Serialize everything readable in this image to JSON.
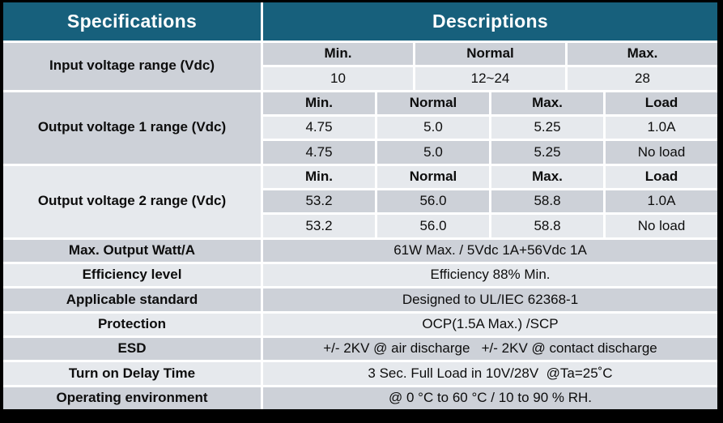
{
  "table": {
    "header": {
      "specifications": "Specifications",
      "descriptions": "Descriptions"
    },
    "input_voltage": {
      "label": "Input voltage range (Vdc)",
      "columns": [
        "Min.",
        "Normal",
        "Max."
      ],
      "values": [
        "10",
        "12~24",
        "28"
      ]
    },
    "output_voltage_1": {
      "label": "Output voltage 1 range (Vdc)",
      "columns": [
        "Min.",
        "Normal",
        "Max.",
        "Load"
      ],
      "rows": [
        [
          "4.75",
          "5.0",
          "5.25",
          "1.0A"
        ],
        [
          "4.75",
          "5.0",
          "5.25",
          "No load"
        ]
      ]
    },
    "output_voltage_2": {
      "label": "Output voltage 2 range (Vdc)",
      "columns": [
        "Min.",
        "Normal",
        "Max.",
        "Load"
      ],
      "rows": [
        [
          "53.2",
          "56.0",
          "58.8",
          "1.0A"
        ],
        [
          "53.2",
          "56.0",
          "58.8",
          "No load"
        ]
      ]
    },
    "simple_rows": [
      {
        "label": "Max. Output Watt/A",
        "value": "61W Max. / 5Vdc 1A+56Vdc 1A"
      },
      {
        "label": "Efficiency level",
        "value": "Efficiency 88% Min."
      },
      {
        "label": "Applicable standard",
        "value": "Designed to UL/IEC 62368-1"
      },
      {
        "label": "Protection",
        "value": "OCP(1.5A Max.) /SCP"
      },
      {
        "label": "ESD",
        "value": "+/- 2KV @ air discharge   +/- 2KV @ contact discharge"
      },
      {
        "label": "Turn on Delay Time",
        "value": "3 Sec. Full Load in 10V/28V  @Ta=25˚C"
      },
      {
        "label": "Operating environment",
        "value": "@ 0 °C to 60 °C / 10 to 90 % RH."
      }
    ],
    "colors": {
      "header_bg": "#17607C",
      "header_text": "#FFFFFF",
      "row_dark": "#CDD1D8",
      "row_light": "#E6E9ED",
      "border_outer": "#000000",
      "grid_lines": "#FFFFFF"
    }
  }
}
